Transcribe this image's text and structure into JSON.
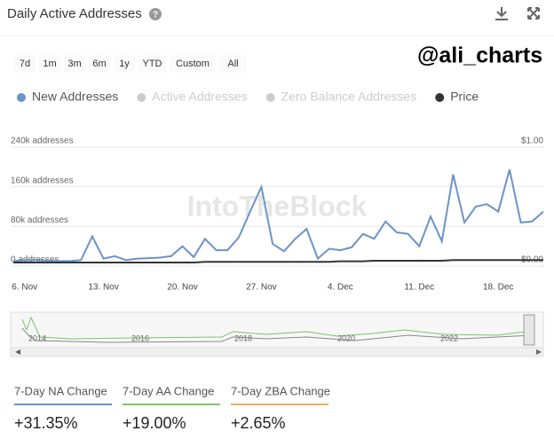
{
  "header": {
    "title": "Daily Active Addresses",
    "watermark": "@ali_charts"
  },
  "range_buttons": [
    "7d",
    "1m",
    "3m",
    "6m",
    "1y",
    "YTD",
    "Custom",
    "All"
  ],
  "chart_data": {
    "type": "line",
    "brand": "IntoTheBlock",
    "legend_items": [
      {
        "name": "New Addresses",
        "color": "#6a93c9"
      },
      {
        "name": "Active Addresses",
        "color": "#cccccc"
      },
      {
        "name": "Zero Balance Addresses",
        "color": "#cccccc"
      },
      {
        "name": "Price",
        "color": "#333333"
      }
    ],
    "categories": [
      null,
      "6. Nov",
      null,
      null,
      null,
      null,
      null,
      null,
      "13. Nov",
      null,
      null,
      null,
      null,
      null,
      null,
      "20. Nov",
      null,
      null,
      null,
      null,
      null,
      null,
      "27. Nov",
      null,
      null,
      null,
      null,
      null,
      null,
      "4. Dec",
      null,
      null,
      null,
      null,
      null,
      null,
      "11. Dec",
      null,
      null,
      null,
      null,
      null,
      null,
      "18. Dec",
      null,
      null,
      null,
      null
    ],
    "series": [
      {
        "name": "New Addresses",
        "color": "#6a93c9",
        "values": [
          10000,
          12000,
          12000,
          11000,
          10000,
          10000,
          12000,
          60000,
          15000,
          20000,
          12000,
          15000,
          16000,
          17000,
          20000,
          40000,
          18000,
          55000,
          32000,
          32000,
          58000,
          110000,
          160000,
          45000,
          30000,
          55000,
          75000,
          15000,
          35000,
          32000,
          38000,
          65000,
          55000,
          90000,
          68000,
          65000,
          40000,
          100000,
          50000,
          185000,
          88000,
          120000,
          125000,
          110000,
          195000,
          88000,
          90000,
          110000
        ]
      },
      {
        "name": "Price",
        "color": "#333333",
        "axis": "y2",
        "values": [
          0.03,
          0.03,
          0.03,
          0.03,
          0.03,
          0.03,
          0.03,
          0.03,
          0.03,
          0.03,
          0.03,
          0.03,
          0.03,
          0.03,
          0.03,
          0.03,
          0.03,
          0.035,
          0.035,
          0.035,
          0.035,
          0.035,
          0.035,
          0.035,
          0.035,
          0.035,
          0.035,
          0.035,
          0.035,
          0.04,
          0.04,
          0.04,
          0.045,
          0.045,
          0.045,
          0.045,
          0.045,
          0.045,
          0.045,
          0.05,
          0.05,
          0.05,
          0.05,
          0.05,
          0.05,
          0.05,
          0.05,
          0.05
        ]
      }
    ],
    "ylim": [
      0,
      240000
    ],
    "yticks": [
      {
        "value": 0,
        "label": "0 addresses"
      },
      {
        "value": 80000,
        "label": "80k addresses"
      },
      {
        "value": 160000,
        "label": "160k addresses"
      },
      {
        "value": 240000,
        "label": "240k addresses"
      }
    ],
    "y2lim": [
      0,
      1
    ],
    "y2ticks": [
      {
        "value": 0,
        "label": "$0.00"
      },
      {
        "value": 1,
        "label": "$1.00"
      }
    ],
    "grid": true
  },
  "navigator": {
    "years": [
      "2014",
      "2016",
      "2018",
      "2020",
      "2022"
    ]
  },
  "stats": [
    {
      "label": "7-Day NA Change",
      "value": "+31.35%",
      "color": "#6a93c9"
    },
    {
      "label": "7-Day AA Change",
      "value": "+19.00%",
      "color": "#7cc36b"
    },
    {
      "label": "7-Day ZBA Change",
      "value": "+2.65%",
      "color": "#f0b060"
    }
  ]
}
